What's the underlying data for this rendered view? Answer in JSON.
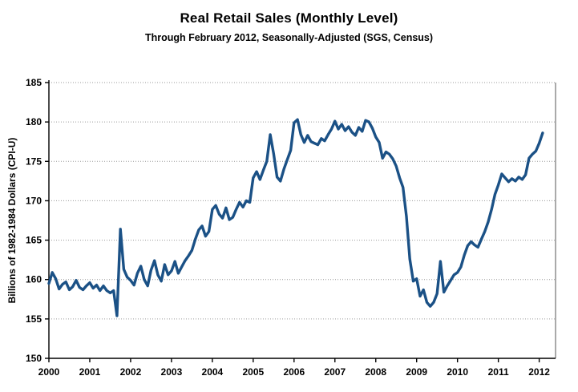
{
  "chart_data": {
    "type": "line",
    "title": "Real Retail Sales (Monthly Level)",
    "subtitle": "Through February 2012, Seasonally-Adjusted (SGS, Census)",
    "ylabel": "Billions of 1982-1984 Dollars (CPI-U)",
    "xlabel": "",
    "frequency": "monthly",
    "x_start": "2000-01",
    "x_end": "2012-02",
    "x_tick_labels": [
      "2000",
      "2001",
      "2002",
      "2003",
      "2004",
      "2005",
      "2006",
      "2007",
      "2008",
      "2009",
      "2010",
      "2011",
      "2012"
    ],
    "ylim": [
      150,
      185
    ],
    "ytick_step": 5,
    "grid": "horizontal-dotted",
    "legend": "none",
    "line_color": "#1B5186",
    "values": [
      159.5,
      160.9,
      160.1,
      158.8,
      159.4,
      159.7,
      158.7,
      159.1,
      159.9,
      159.0,
      158.7,
      159.2,
      159.6,
      158.9,
      159.3,
      158.6,
      159.2,
      158.6,
      158.3,
      158.6,
      155.4,
      166.4,
      161.3,
      160.3,
      159.9,
      159.3,
      160.8,
      161.7,
      160.0,
      159.2,
      161.2,
      162.4,
      160.6,
      159.8,
      161.9,
      160.6,
      161.1,
      162.3,
      160.8,
      161.6,
      162.4,
      163.0,
      163.7,
      165.1,
      166.3,
      166.8,
      165.5,
      166.1,
      168.9,
      169.4,
      168.3,
      167.8,
      169.1,
      167.6,
      167.9,
      168.9,
      169.8,
      169.2,
      170.0,
      169.8,
      172.9,
      173.7,
      172.7,
      173.9,
      175.0,
      178.4,
      176.0,
      173.0,
      172.5,
      174.0,
      175.2,
      176.4,
      179.9,
      180.3,
      178.4,
      177.4,
      178.3,
      177.5,
      177.3,
      177.1,
      177.9,
      177.6,
      178.4,
      179.1,
      180.1,
      179.1,
      179.7,
      178.9,
      179.4,
      178.7,
      178.3,
      179.3,
      178.8,
      180.2,
      180.0,
      179.2,
      178.1,
      177.4,
      175.4,
      176.2,
      175.9,
      175.3,
      174.4,
      172.9,
      171.7,
      168.0,
      162.6,
      159.8,
      160.1,
      157.9,
      158.7,
      157.1,
      156.6,
      157.1,
      158.2,
      162.3,
      158.4,
      159.2,
      159.9,
      160.6,
      160.9,
      161.6,
      163.1,
      164.3,
      164.8,
      164.4,
      164.1,
      165.1,
      166.1,
      167.3,
      168.9,
      170.8,
      172.0,
      173.4,
      172.9,
      172.4,
      172.8,
      172.5,
      173.0,
      172.7,
      173.3,
      175.4,
      175.9,
      176.3,
      177.3,
      178.6
    ]
  }
}
